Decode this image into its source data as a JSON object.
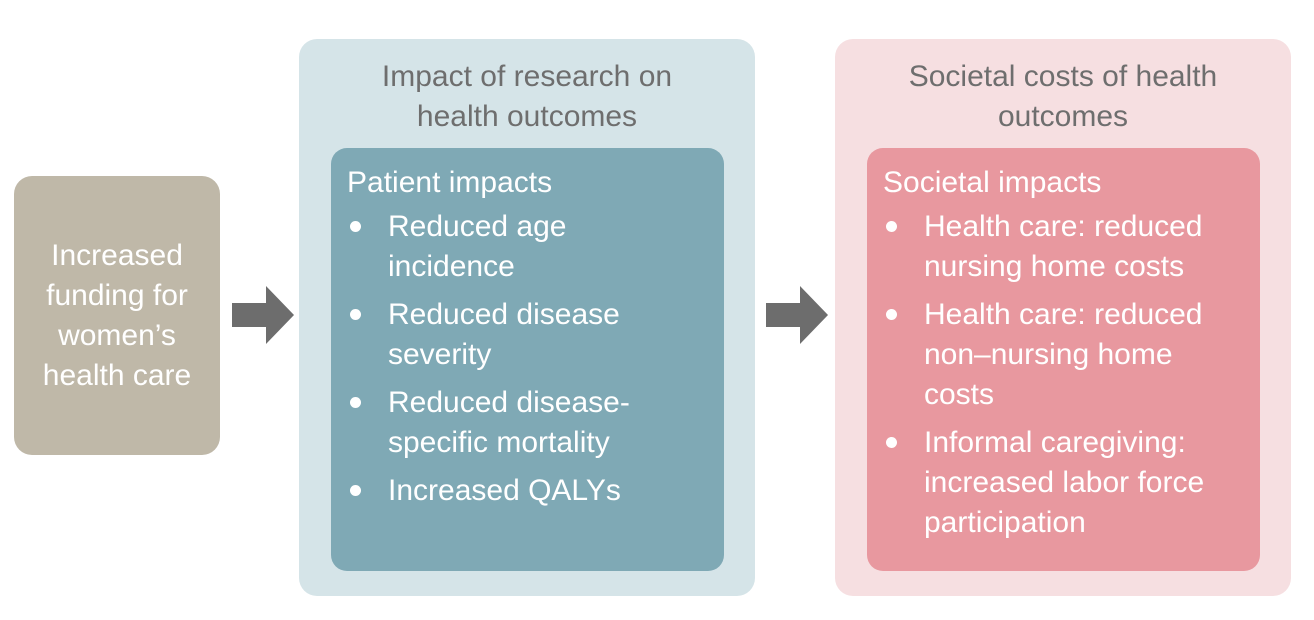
{
  "start": {
    "label": "Increased\nfunding for\nwomen’s\nhealth care"
  },
  "research_panel": {
    "title": "Impact of research on\nhealth outcomes",
    "heading": "Patient impacts",
    "items": [
      "Reduced age\nincidence",
      "Reduced disease\nseverity",
      "Reduced disease-\nspecific mortality",
      "Increased QALYs"
    ]
  },
  "societal_panel": {
    "title": "Societal costs of health\noutcomes",
    "heading": "Societal impacts",
    "items": [
      "Health care: reduced\nnursing home costs",
      "Health care: reduced\nnon–nursing home\ncosts",
      "Informal caregiving:\nincreased labor force\nparticipation"
    ]
  },
  "colors": {
    "start_box": "#bfb8a8",
    "research_outer": "#d5e4e8",
    "research_inner": "#7fa9b5",
    "societal_outer": "#f6dfe1",
    "societal_inner": "#e8989f",
    "arrow": "#6d6d6d",
    "title_text": "#6e6e6e"
  },
  "icons": {
    "arrow": "right-arrow-icon",
    "bullet": "bullet-dot-icon"
  }
}
